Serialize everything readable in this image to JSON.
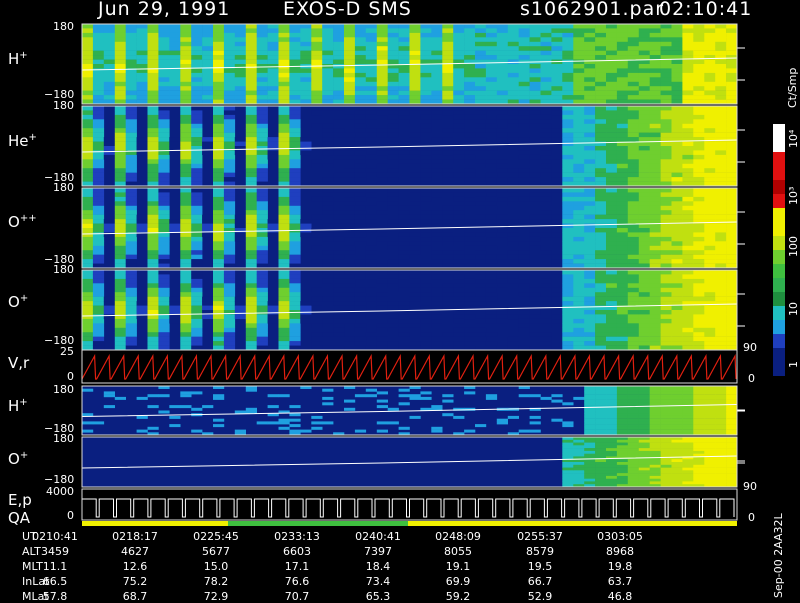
{
  "header": {
    "date": "Jun 29, 1991",
    "instrument": "EXOS-D SMS",
    "file": "s1062901.par",
    "time": "02:10:41"
  },
  "colors": {
    "background": "#000000",
    "low": "#0a1f80",
    "mid": "#1fa0e0",
    "green": "#3fbf3f",
    "yellow": "#f0f000",
    "red": "#e01010",
    "trace_red": "#e02010"
  },
  "panels": [
    {
      "species": "H",
      "charge": "+",
      "ymax": "180",
      "ymin": "−180"
    },
    {
      "species": "He",
      "charge": "+",
      "ymax": "180",
      "ymin": "−180"
    },
    {
      "species": "O",
      "charge": "++",
      "ymax": "180",
      "ymin": "−180"
    },
    {
      "species": "O",
      "charge": "+",
      "ymax": "180",
      "ymin": "−180"
    },
    {
      "species": "V,r",
      "charge": "",
      "ymax": "25",
      "ymin": "0",
      "right_max": "90",
      "right_min": "0"
    },
    {
      "species": "H",
      "charge": "+",
      "ymax": "180",
      "ymin": "−180"
    },
    {
      "species": "O",
      "charge": "+",
      "ymax": "180",
      "ymin": "−180",
      "right_min": "90"
    },
    {
      "species": "E,p",
      "species2": "QA",
      "ymax": "4000",
      "ymin": "0",
      "right_min": "0"
    }
  ],
  "colorbar": {
    "unit": "Ct/Smp",
    "ticks": [
      "1",
      "10",
      "100",
      "10³",
      "10⁴"
    ]
  },
  "footer": {
    "side_label": "Sep-00  2AA32L",
    "rows": [
      {
        "label": "UT",
        "values": [
          "0210:41",
          "0218:17",
          "0225:45",
          "0233:13",
          "0240:41",
          "0248:09",
          "0255:37",
          "0303:05"
        ]
      },
      {
        "label": "ALT",
        "values": [
          "3459",
          "4627",
          "5677",
          "6603",
          "7397",
          "8055",
          "8579",
          "8968"
        ]
      },
      {
        "label": "MLT",
        "values": [
          "11.1",
          "12.6",
          "15.0",
          "17.1",
          "18.4",
          "19.1",
          "19.5",
          "19.8"
        ]
      },
      {
        "label": "InLat",
        "values": [
          "66.5",
          "75.2",
          "78.2",
          "76.6",
          "73.4",
          "69.9",
          "66.7",
          "63.7"
        ]
      },
      {
        "label": "MLat",
        "values": [
          "57.8",
          "68.7",
          "72.9",
          "70.7",
          "65.3",
          "59.2",
          "52.9",
          "46.8"
        ]
      }
    ]
  },
  "chart_data": {
    "type": "heatmap",
    "title": "Jun 29, 1991   EXOS-D SMS",
    "x": [
      "0210:41",
      "0218:17",
      "0225:45",
      "0233:13",
      "0240:41",
      "0248:09",
      "0255:37",
      "0303:05"
    ],
    "colorbar_scale": "log",
    "colorbar_range": [
      1,
      10000
    ],
    "series": [
      {
        "name": "H+",
        "ylim": [
          -180,
          180
        ]
      },
      {
        "name": "He+",
        "ylim": [
          -180,
          180
        ]
      },
      {
        "name": "O++",
        "ylim": [
          -180,
          180
        ]
      },
      {
        "name": "O+",
        "ylim": [
          -180,
          180
        ]
      },
      {
        "name": "V,r",
        "ylim": [
          0,
          25
        ]
      },
      {
        "name": "H+",
        "ylim": [
          -180,
          180
        ]
      },
      {
        "name": "O+",
        "ylim": [
          -180,
          180
        ]
      },
      {
        "name": "E,p",
        "ylim": [
          0,
          4000
        ]
      }
    ]
  }
}
